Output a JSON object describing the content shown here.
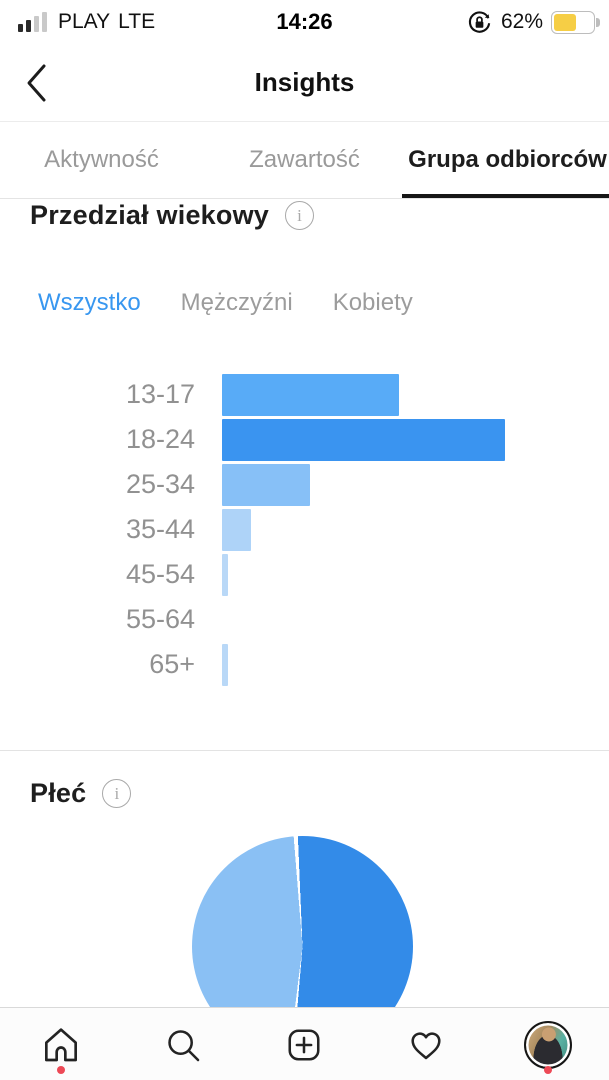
{
  "status_bar": {
    "carrier": "PLAY",
    "network": "LTE",
    "time": "14:26",
    "battery_percent": "62%",
    "battery_color": "#f6ce45",
    "signal_filled_bars": 2,
    "signal_total_bars": 4
  },
  "nav": {
    "title": "Insights"
  },
  "tabs": {
    "items": [
      {
        "label": "Aktywność",
        "active": false
      },
      {
        "label": "Zawartość",
        "active": false
      },
      {
        "label": "Grupa odbiorców",
        "active": true
      }
    ]
  },
  "age_section": {
    "title": "Przedział wiekowy",
    "filters": [
      {
        "label": "Wszystko",
        "active": true
      },
      {
        "label": "Mężczyźni",
        "active": false
      },
      {
        "label": "Kobiety",
        "active": false
      }
    ]
  },
  "gender_section": {
    "title": "Płeć"
  },
  "colors": {
    "accent_blue": "#3897f0",
    "active_text": "#1d1d1d",
    "inactive_text": "#9a9a9a",
    "badge_red": "#ed4956"
  },
  "chart_data": [
    {
      "type": "bar",
      "orientation": "horizontal",
      "title": "Przedział wiekowy",
      "filter_selected": "Wszystko",
      "categories": [
        "13-17",
        "18-24",
        "25-34",
        "35-44",
        "45-54",
        "55-64",
        "65+"
      ],
      "values": [
        30,
        48,
        15,
        5,
        1,
        0,
        1
      ],
      "xlim": [
        0,
        48
      ],
      "grid": false,
      "value_labels_shown": false,
      "bar_colors": [
        "#58abf7",
        "#3a94f0",
        "#87c0f7",
        "#aed3f8",
        "#b9d8f7",
        "#b9d8f7",
        "#b9d8f7"
      ]
    },
    {
      "type": "pie",
      "title": "Płeć",
      "slices": [
        {
          "name": "right-dark-blue",
          "value": 52,
          "color": "#338be8"
        },
        {
          "name": "left-light-blue",
          "value": 48,
          "color": "#8ac0f4"
        }
      ],
      "labels_shown": false,
      "legend_position": "none"
    }
  ],
  "tab_bar": {
    "items": [
      {
        "icon": "home-icon",
        "has_badge": true
      },
      {
        "icon": "search-icon",
        "has_badge": false
      },
      {
        "icon": "new-post-icon",
        "has_badge": false
      },
      {
        "icon": "activity-heart-icon",
        "has_badge": false
      },
      {
        "icon": "profile-avatar",
        "has_badge": true
      }
    ]
  }
}
